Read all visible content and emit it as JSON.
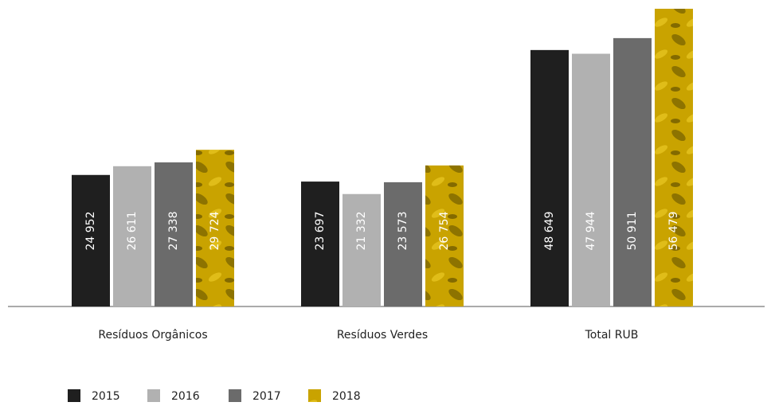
{
  "chart_data": {
    "type": "bar",
    "categories": [
      "Resíduos Orgânicos",
      "Resíduos Verdes",
      "Total RUB"
    ],
    "series": [
      {
        "name": "2015",
        "color": "#1f1f1f",
        "values": [
          24952,
          23697,
          48649
        ],
        "value_labels": [
          "24 952",
          "23 697",
          "48 649"
        ]
      },
      {
        "name": "2016",
        "color": "#b1b1b1",
        "values": [
          26611,
          21332,
          47944
        ],
        "value_labels": [
          "26 611",
          "21 332",
          "47 944"
        ]
      },
      {
        "name": "2017",
        "color": "#6b6b6b",
        "values": [
          27338,
          23573,
          50911
        ],
        "value_labels": [
          "27 338",
          "23 573",
          "50 911"
        ]
      },
      {
        "name": "2018",
        "color": "#c9a300",
        "values": [
          29724,
          26754,
          56479
        ],
        "value_labels": [
          "29 724",
          "26 754",
          "56 479"
        ]
      }
    ]
  }
}
